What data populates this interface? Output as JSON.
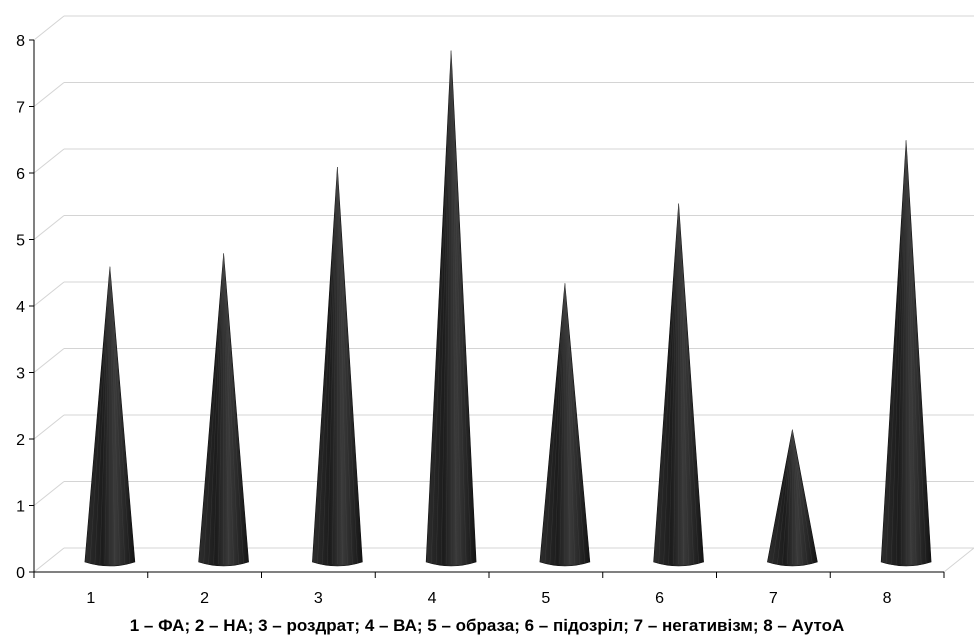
{
  "chart_data": {
    "type": "bar",
    "style": "3d-cone",
    "categories": [
      "1",
      "2",
      "3",
      "4",
      "5",
      "6",
      "7",
      "8"
    ],
    "values": [
      4.5,
      4.7,
      6.0,
      7.75,
      4.25,
      5.45,
      2.05,
      6.4
    ],
    "ylim": [
      0,
      8
    ],
    "y_ticks": [
      "0",
      "1",
      "2",
      "3",
      "4",
      "5",
      "6",
      "7",
      "8"
    ],
    "grid": true,
    "legend": "none",
    "caption": "1 – ФА; 2 – НА; 3 – роздрат; 4 – ВА; 5 – образа; 6 – підозріл; 7 – негативізм; 8 – АутоА",
    "colors": {
      "cone": "#1a1a1a",
      "grid": "#d4d4d4",
      "axis": "#000000"
    }
  }
}
